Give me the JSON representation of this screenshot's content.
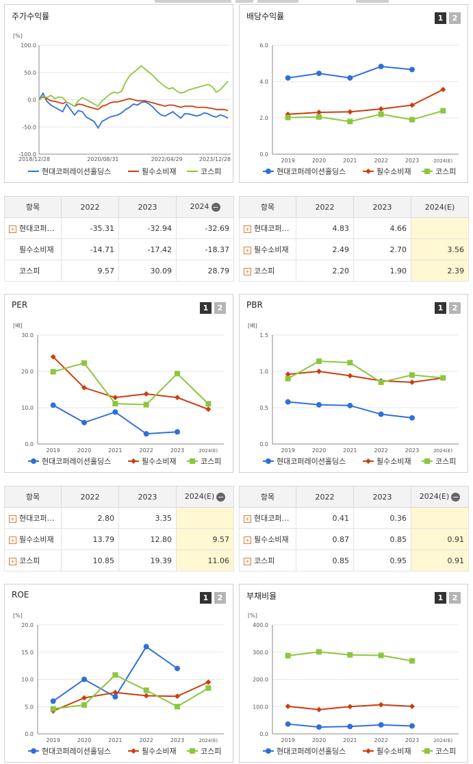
{
  "colors": {
    "company": "#2f6fdb",
    "sector": "#cc3d0e",
    "index": "#8cc63e",
    "grid": "#e5e5e5",
    "axis": "#888888"
  },
  "legend": {
    "company": "현대코퍼레이션홀딩스",
    "sector": "필수소비재",
    "index": "코스피"
  },
  "pages": {
    "one": "1",
    "two": "2"
  },
  "tables": {
    "stock": {
      "header": [
        "항목",
        "2022",
        "2023",
        "2024"
      ],
      "rows": [
        {
          "name": "현대코퍼…",
          "vals": [
            "-35.31",
            "-32.94",
            "-32.69"
          ]
        },
        {
          "name": "필수소비재",
          "vals": [
            "-14.71",
            "-17.42",
            "-18.37"
          ]
        },
        {
          "name": "코스피",
          "vals": [
            "9.57",
            "30.09",
            "28.79"
          ]
        }
      ]
    },
    "div": {
      "header": [
        "항목",
        "2022",
        "2023",
        "2024(E)"
      ],
      "rows": [
        {
          "name": "현대코퍼…",
          "vals": [
            "4.83",
            "4.66",
            ""
          ]
        },
        {
          "name": "필수소비재",
          "vals": [
            "2.49",
            "2.70",
            "3.56"
          ]
        },
        {
          "name": "코스피",
          "vals": [
            "2.20",
            "1.90",
            "2.39"
          ]
        }
      ]
    },
    "per": {
      "header": [
        "항목",
        "2022",
        "2023",
        "2024(E)"
      ],
      "rows": [
        {
          "name": "현대코퍼…",
          "vals": [
            "2.80",
            "3.35",
            ""
          ]
        },
        {
          "name": "필수소비재",
          "vals": [
            "13.79",
            "12.80",
            "9.57"
          ]
        },
        {
          "name": "코스피",
          "vals": [
            "10.85",
            "19.39",
            "11.06"
          ]
        }
      ]
    },
    "pbr": {
      "header": [
        "항목",
        "2022",
        "2023",
        "2024(E)"
      ],
      "rows": [
        {
          "name": "현대코퍼…",
          "vals": [
            "0.41",
            "0.36",
            ""
          ]
        },
        {
          "name": "필수소비재",
          "vals": [
            "0.87",
            "0.85",
            "0.91"
          ]
        },
        {
          "name": "코스피",
          "vals": [
            "0.85",
            "0.95",
            "0.91"
          ]
        }
      ]
    }
  },
  "chart_data": [
    {
      "id": "stock",
      "title": "주가수익률",
      "type": "line",
      "unit": "[%]",
      "x_ticks": [
        "2018/12/28",
        "2020/08/31",
        "2022/04/29",
        "2023/12/28"
      ],
      "ylim": [
        -100,
        100
      ],
      "y_ticks": [
        "100.0",
        "50.0",
        "0.0",
        "-50.0",
        "-100.0"
      ],
      "series": [
        {
          "name": "현대코퍼레이션홀딩스",
          "values": [
            0,
            12,
            -3,
            -10,
            -14,
            -18,
            -22,
            -8,
            -18,
            -28,
            -20,
            -22,
            -32,
            -36,
            -40,
            -52,
            -40,
            -36,
            -32,
            -30,
            -28,
            -24,
            -18,
            -14,
            -8,
            -10,
            -5,
            -4,
            -8,
            -14,
            -22,
            -28,
            -30,
            -26,
            -22,
            -28,
            -34,
            -26,
            -26,
            -28,
            -30,
            -28,
            -24,
            -26,
            -30,
            -32,
            -28,
            -30,
            -34
          ]
        },
        {
          "name": "필수소비재",
          "values": [
            0,
            5,
            2,
            -2,
            -3,
            -5,
            -7,
            -4,
            -8,
            -12,
            -8,
            -9,
            -12,
            -14,
            -16,
            -18,
            -12,
            -10,
            -6,
            -4,
            -4,
            -2,
            0,
            2,
            0,
            -2,
            -2,
            -2,
            -4,
            -6,
            -8,
            -10,
            -12,
            -10,
            -10,
            -12,
            -14,
            -12,
            -12,
            -12,
            -14,
            -14,
            -14,
            -15,
            -16,
            -18,
            -18,
            -18,
            -20
          ]
        },
        {
          "name": "코스피",
          "values": [
            0,
            6,
            4,
            8,
            2,
            5,
            4,
            -4,
            -8,
            -12,
            -2,
            4,
            0,
            -4,
            -8,
            -12,
            -2,
            4,
            10,
            14,
            12,
            16,
            32,
            44,
            50,
            56,
            62,
            56,
            50,
            44,
            36,
            30,
            24,
            20,
            22,
            16,
            12,
            14,
            18,
            20,
            22,
            24,
            26,
            28,
            24,
            14,
            18,
            26,
            34
          ]
        }
      ]
    },
    {
      "id": "div",
      "title": "배당수익률",
      "type": "line",
      "categories": [
        "2019",
        "2020",
        "2021",
        "2022",
        "2023",
        "2024(E)"
      ],
      "ylim": [
        0,
        6
      ],
      "y_ticks": [
        "6.0",
        "4.0",
        "2.0",
        "0.0"
      ],
      "series": [
        {
          "name": "현대코퍼레이션홀딩스",
          "marker": "circle",
          "values": [
            4.2,
            4.45,
            4.2,
            4.83,
            4.66,
            null
          ]
        },
        {
          "name": "필수소비재",
          "marker": "diamond",
          "values": [
            2.2,
            2.3,
            2.33,
            2.49,
            2.7,
            3.56
          ]
        },
        {
          "name": "코스피",
          "marker": "square",
          "values": [
            2.02,
            2.05,
            1.8,
            2.2,
            1.9,
            2.39
          ]
        }
      ]
    },
    {
      "id": "per",
      "title": "PER",
      "type": "line",
      "unit": "[배]",
      "categories": [
        "2019",
        "2020",
        "2021",
        "2022",
        "2023",
        "2024(E)"
      ],
      "ylim": [
        0,
        30
      ],
      "y_ticks": [
        "30.0",
        "20.0",
        "10.0",
        "0.0"
      ],
      "series": [
        {
          "name": "현대코퍼레이션홀딩스",
          "marker": "circle",
          "values": [
            10.7,
            5.9,
            8.8,
            2.8,
            3.35,
            null
          ]
        },
        {
          "name": "필수소비재",
          "marker": "diamond",
          "values": [
            24.0,
            15.5,
            12.8,
            13.79,
            12.8,
            9.57
          ]
        },
        {
          "name": "코스피",
          "marker": "square",
          "values": [
            19.9,
            22.3,
            11.1,
            10.85,
            19.39,
            11.06
          ]
        }
      ]
    },
    {
      "id": "pbr",
      "title": "PBR",
      "type": "line",
      "unit": "[배]",
      "categories": [
        "2019",
        "2020",
        "2021",
        "2022",
        "2023",
        "2024(E)"
      ],
      "ylim": [
        0,
        1.5
      ],
      "y_ticks": [
        "1.5",
        "1.0",
        "0.5",
        "0.0"
      ],
      "series": [
        {
          "name": "현대코퍼레이션홀딩스",
          "marker": "circle",
          "values": [
            0.58,
            0.54,
            0.53,
            0.41,
            0.36,
            null
          ]
        },
        {
          "name": "필수소비재",
          "marker": "diamond",
          "values": [
            0.96,
            1.0,
            0.94,
            0.87,
            0.85,
            0.91
          ]
        },
        {
          "name": "코스피",
          "marker": "square",
          "values": [
            0.9,
            1.14,
            1.12,
            0.85,
            0.95,
            0.91
          ]
        }
      ]
    },
    {
      "id": "roe",
      "title": "ROE",
      "type": "line",
      "unit": "[%]",
      "categories": [
        "2019",
        "2020",
        "2021",
        "2022",
        "2023",
        "2024(E)"
      ],
      "ylim": [
        0,
        20
      ],
      "y_ticks": [
        "20.0",
        "15.0",
        "10.0",
        "5.0",
        "0.0"
      ],
      "series": [
        {
          "name": "현대코퍼레이션홀딩스",
          "marker": "circle",
          "values": [
            6.0,
            10.0,
            6.8,
            16.0,
            12.0,
            null
          ]
        },
        {
          "name": "필수소비재",
          "marker": "diamond",
          "values": [
            4.2,
            6.6,
            7.6,
            7.0,
            6.9,
            9.5
          ]
        },
        {
          "name": "코스피",
          "marker": "square",
          "values": [
            4.6,
            5.3,
            10.8,
            8.0,
            5.0,
            8.4
          ]
        }
      ]
    },
    {
      "id": "debt",
      "title": "부채비율",
      "type": "line",
      "unit": "[%]",
      "categories": [
        "2019",
        "2020",
        "2021",
        "2022",
        "2023",
        "2024(E)"
      ],
      "ylim": [
        0,
        400
      ],
      "y_ticks": [
        "400.0",
        "300.0",
        "200.0",
        "100.0",
        "0.0"
      ],
      "series": [
        {
          "name": "현대코퍼레이션홀딩스",
          "marker": "circle",
          "values": [
            36,
            25,
            27,
            33,
            29,
            null
          ]
        },
        {
          "name": "필수소비재",
          "marker": "diamond",
          "values": [
            101,
            89,
            100,
            107,
            101,
            null
          ]
        },
        {
          "name": "코스피",
          "marker": "square",
          "values": [
            287,
            301,
            290,
            288,
            268,
            null
          ]
        }
      ]
    }
  ]
}
